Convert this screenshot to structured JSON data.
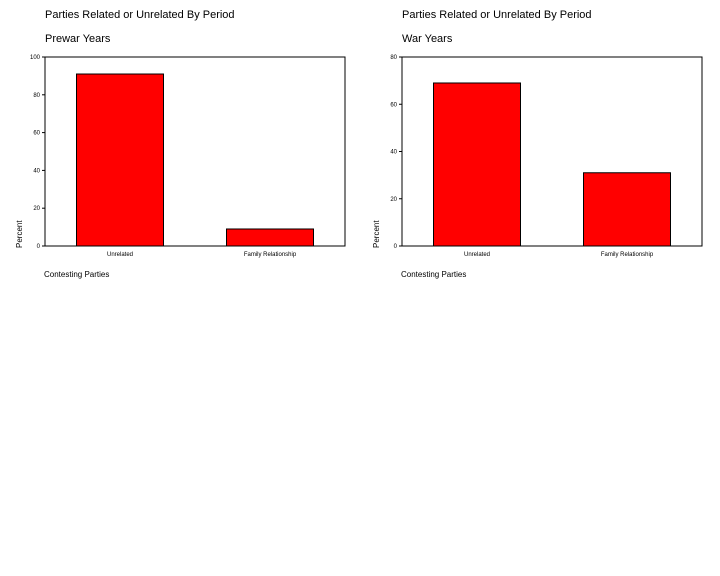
{
  "chart_data": [
    {
      "type": "bar",
      "title": "Parties Related or Unrelated By Period",
      "subtitle": "Prewar Years",
      "xlabel": "Contesting Parties",
      "ylabel": "Percent",
      "categories": [
        "Unrelated",
        "Family Relationship"
      ],
      "values": [
        91,
        9
      ],
      "ylim": [
        0,
        100
      ],
      "yticks": [
        0,
        20,
        40,
        60,
        80,
        100
      ],
      "bar_color": "#ff0000",
      "grid": false
    },
    {
      "type": "bar",
      "title": "Parties Related or Unrelated By Period",
      "subtitle": "War Years",
      "xlabel": "Contesting Parties",
      "ylabel": "Percent",
      "categories": [
        "Unrelated",
        "Family Relationship"
      ],
      "values": [
        69,
        31
      ],
      "ylim": [
        0,
        80
      ],
      "yticks": [
        0,
        20,
        40,
        60,
        80
      ],
      "bar_color": "#ff0000",
      "grid": false
    }
  ]
}
